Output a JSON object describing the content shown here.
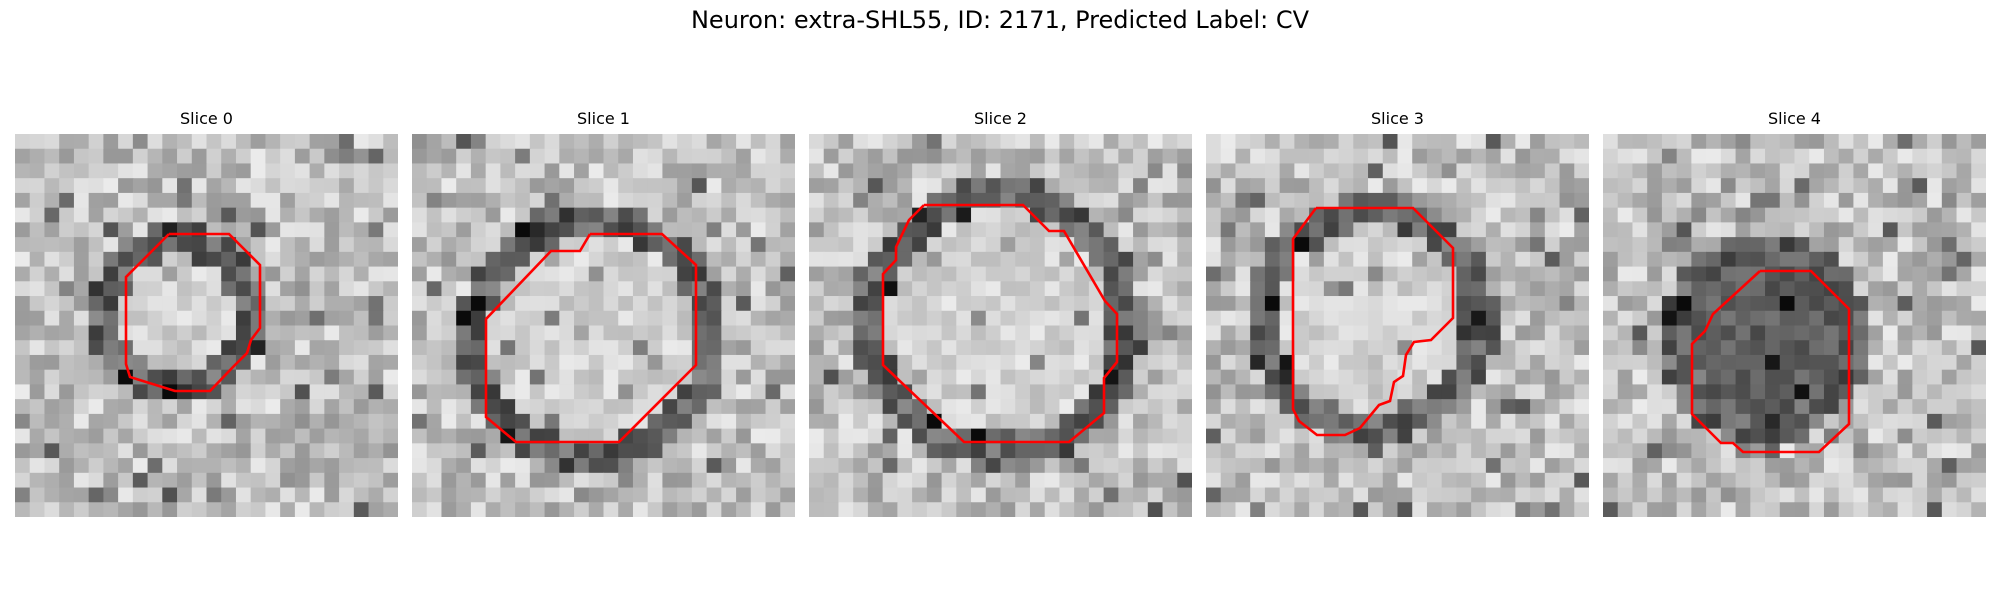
{
  "figure": {
    "title": "Neuron: extra-SHL55, ID: 2171, Predicted Label: CV",
    "contour_color": "#ff0000",
    "colormap": "gray",
    "panels": [
      {
        "label": "Slice 0"
      },
      {
        "label": "Slice 1"
      },
      {
        "label": "Slice 2"
      },
      {
        "label": "Slice 3"
      },
      {
        "label": "Slice 4"
      }
    ]
  }
}
